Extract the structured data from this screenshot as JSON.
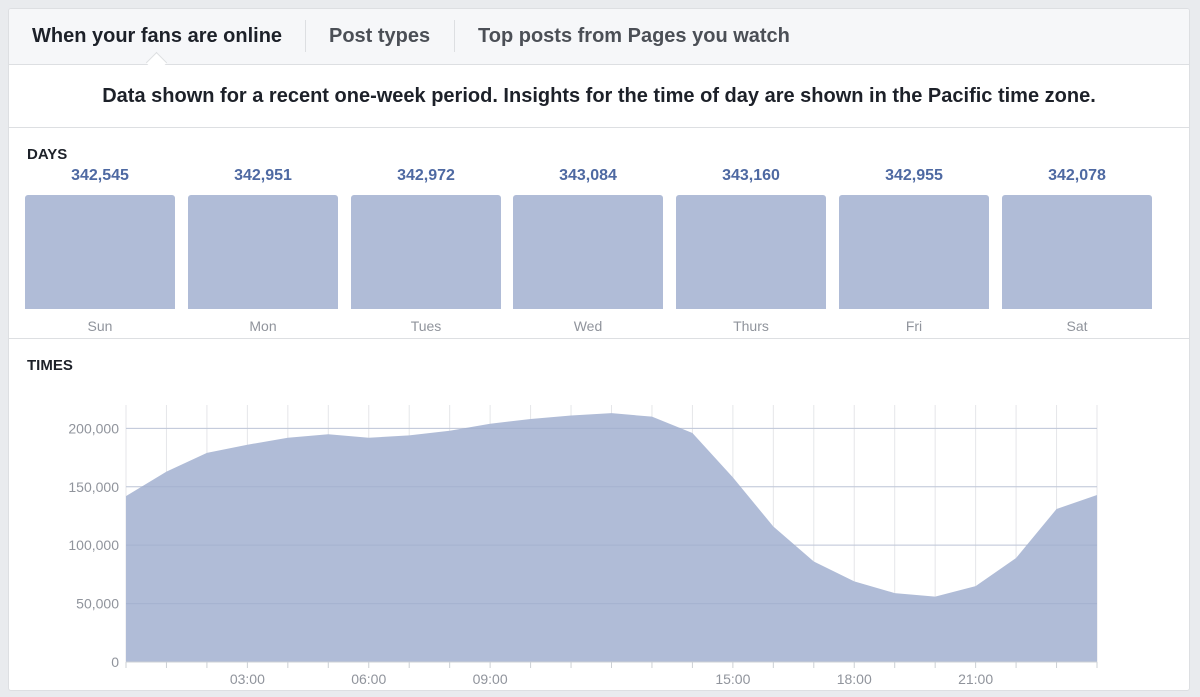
{
  "tabs": [
    {
      "label": "When your fans are online",
      "active": true
    },
    {
      "label": "Post types",
      "active": false
    },
    {
      "label": "Top posts from Pages you watch",
      "active": false
    }
  ],
  "notice": "Data shown for a recent one-week period. Insights for the time of day are shown in the Pacific time zone.",
  "days": {
    "title": "DAYS",
    "items": [
      {
        "label": "Sun",
        "value": "342,545"
      },
      {
        "label": "Mon",
        "value": "342,951"
      },
      {
        "label": "Tues",
        "value": "342,972"
      },
      {
        "label": "Wed",
        "value": "343,084"
      },
      {
        "label": "Thurs",
        "value": "343,160"
      },
      {
        "label": "Fri",
        "value": "342,955"
      },
      {
        "label": "Sat",
        "value": "342,078"
      }
    ]
  },
  "times": {
    "title": "TIMES"
  },
  "colors": {
    "area_fill": "#b0bcd7",
    "value_text": "#4e69a2",
    "label_text": "#90949c"
  },
  "chart_data": [
    {
      "type": "bar",
      "title": "DAYS",
      "categories": [
        "Sun",
        "Mon",
        "Tues",
        "Wed",
        "Thurs",
        "Fri",
        "Sat"
      ],
      "values": [
        342545,
        342951,
        342972,
        343084,
        343160,
        342955,
        342078
      ],
      "data_labels": true
    },
    {
      "type": "area",
      "title": "TIMES",
      "x": [
        0,
        1,
        2,
        3,
        4,
        5,
        6,
        7,
        8,
        9,
        10,
        11,
        12,
        13,
        14,
        15,
        16,
        17,
        18,
        19,
        20,
        21,
        22,
        23,
        24
      ],
      "values": [
        142000,
        163000,
        179000,
        186000,
        192000,
        195000,
        192000,
        194000,
        198000,
        204000,
        208000,
        211000,
        213000,
        210000,
        196000,
        158000,
        116000,
        86000,
        69000,
        59000,
        56000,
        65000,
        89000,
        131000,
        143000
      ],
      "ylim": [
        0,
        220000
      ],
      "yticks": [
        0,
        50000,
        100000,
        150000,
        200000
      ],
      "ytick_labels": [
        "0",
        "50,000",
        "100,000",
        "150,000",
        "200,000"
      ],
      "xlim": [
        0,
        24
      ],
      "xticks": [
        3,
        6,
        9,
        15,
        18,
        21
      ],
      "xtick_labels": [
        "03:00",
        "06:00",
        "09:00",
        "15:00",
        "18:00",
        "21:00"
      ],
      "grid": true
    }
  ]
}
